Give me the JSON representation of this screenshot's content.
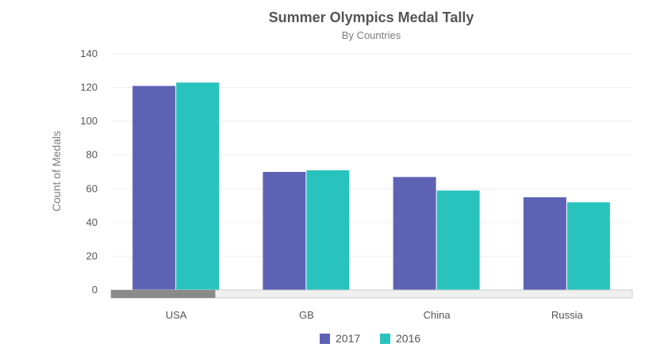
{
  "chart_data": {
    "type": "bar",
    "title": "Summer Olympics Medal Tally",
    "subtitle": "By Countries",
    "ylabel": "Count of Medals",
    "xlabel": "",
    "categories": [
      "USA",
      "GB",
      "China",
      "Russia"
    ],
    "series": [
      {
        "name": "2017",
        "values": [
          121,
          70,
          67,
          55
        ],
        "color": "#5d62b5"
      },
      {
        "name": "2016",
        "values": [
          123,
          71,
          59,
          52
        ],
        "color": "#29c3be"
      }
    ],
    "ylim": [
      0,
      140
    ],
    "yticks": [
      0,
      20,
      40,
      60,
      80,
      100,
      120,
      140
    ],
    "grid": true,
    "legend": "bottom-center",
    "scrollbar": {
      "visible_fraction": 0.2
    }
  }
}
